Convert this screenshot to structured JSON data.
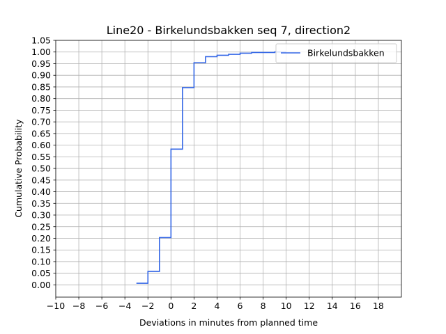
{
  "chart_data": {
    "type": "line",
    "step": "post",
    "title": "Line20 - Birkelundsbakken seq 7, direction2",
    "xlabel": "Deviations in minutes from planned time",
    "ylabel": "Cumulative Probability",
    "xlim": [
      -10,
      20
    ],
    "ylim": [
      -0.0525,
      1.05
    ],
    "xticks": [
      -10,
      -8,
      -6,
      -4,
      -2,
      0,
      2,
      4,
      6,
      8,
      10,
      12,
      14,
      16,
      18
    ],
    "xtick_labels": [
      "−10",
      "−8",
      "−6",
      "−4",
      "−2",
      "0",
      "2",
      "4",
      "6",
      "8",
      "10",
      "12",
      "14",
      "16",
      "18"
    ],
    "yticks": [
      0.0,
      0.05,
      0.1,
      0.15,
      0.2,
      0.25,
      0.3,
      0.35,
      0.4,
      0.45,
      0.5,
      0.55,
      0.6,
      0.65,
      0.7,
      0.75,
      0.8,
      0.85,
      0.9,
      0.95,
      1.0,
      1.05
    ],
    "ytick_labels": [
      "0.00",
      "0.05",
      "0.10",
      "0.15",
      "0.20",
      "0.25",
      "0.30",
      "0.35",
      "0.40",
      "0.45",
      "0.50",
      "0.55",
      "0.60",
      "0.65",
      "0.70",
      "0.75",
      "0.80",
      "0.85",
      "0.90",
      "0.95",
      "1.00",
      "1.05"
    ],
    "grid": true,
    "legend": {
      "position": "upper-right"
    },
    "series": [
      {
        "name": "Birkelundsbakken",
        "color": "#3366e6",
        "x": [
          -3,
          -2,
          -1,
          0,
          1,
          2,
          3,
          4,
          5,
          6,
          7,
          8,
          9,
          10
        ],
        "y": [
          0.007,
          0.058,
          0.203,
          0.583,
          0.847,
          0.954,
          0.98,
          0.986,
          0.99,
          0.995,
          0.998,
          0.998,
          1.0,
          1.0
        ]
      }
    ]
  }
}
